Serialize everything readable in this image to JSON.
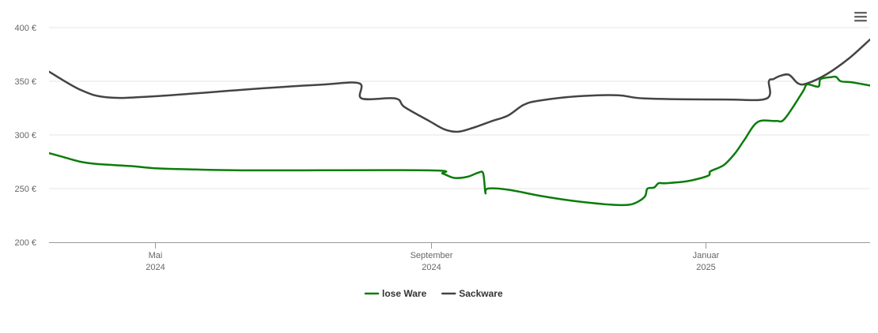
{
  "chart_data": {
    "type": "line",
    "y_axis": {
      "ticks": [
        "200 €",
        "250 €",
        "300 €",
        "350 €",
        "400 €"
      ],
      "values": [
        200,
        250,
        300,
        350,
        400
      ],
      "ylim": [
        200,
        400
      ]
    },
    "x_axis": {
      "ticks": [
        {
          "date": "2024-05-01",
          "month": "Mai",
          "year": "2024"
        },
        {
          "date": "2024-09-01",
          "month": "September",
          "year": "2024"
        },
        {
          "date": "2025-01-01",
          "month": "Januar",
          "year": "2025"
        }
      ],
      "xlim": [
        "2024-03-15",
        "2025-03-15"
      ]
    },
    "grid": "horizontal",
    "legend_position": "bottom-center",
    "series": [
      {
        "name": "lose Ware",
        "color": "#0a7d0a",
        "points": [
          [
            "2024-03-15",
            283
          ],
          [
            "2024-03-22",
            279
          ],
          [
            "2024-03-29",
            275
          ],
          [
            "2024-04-05",
            273
          ],
          [
            "2024-04-20",
            271
          ],
          [
            "2024-05-01",
            269
          ],
          [
            "2024-05-15",
            268
          ],
          [
            "2024-06-15",
            267
          ],
          [
            "2024-08-31",
            267
          ],
          [
            "2024-09-06",
            264
          ],
          [
            "2024-09-11",
            260
          ],
          [
            "2024-09-17",
            261
          ],
          [
            "2024-09-22",
            265
          ],
          [
            "2024-09-24",
            264
          ],
          [
            "2024-09-25",
            246
          ],
          [
            "2024-09-26",
            250
          ],
          [
            "2024-10-05",
            249
          ],
          [
            "2024-10-20",
            243
          ],
          [
            "2024-11-05",
            238
          ],
          [
            "2024-11-20",
            235
          ],
          [
            "2024-11-28",
            235
          ],
          [
            "2024-12-02",
            238
          ],
          [
            "2024-12-05",
            243
          ],
          [
            "2024-12-06",
            250
          ],
          [
            "2024-12-09",
            251
          ],
          [
            "2024-12-11",
            255
          ],
          [
            "2024-12-14",
            255
          ],
          [
            "2024-12-24",
            257
          ],
          [
            "2025-01-02",
            262
          ],
          [
            "2025-01-03",
            266
          ],
          [
            "2025-01-09",
            272
          ],
          [
            "2025-01-14",
            283
          ],
          [
            "2025-01-18",
            295
          ],
          [
            "2025-01-24",
            312
          ],
          [
            "2025-02-01",
            313
          ],
          [
            "2025-02-05",
            315
          ],
          [
            "2025-02-13",
            340
          ],
          [
            "2025-02-15",
            347
          ],
          [
            "2025-02-20",
            345
          ],
          [
            "2025-02-21",
            352
          ],
          [
            "2025-02-26",
            354
          ],
          [
            "2025-02-28",
            354
          ],
          [
            "2025-03-02",
            350
          ],
          [
            "2025-03-07",
            349
          ],
          [
            "2025-03-15",
            346
          ]
        ]
      },
      {
        "name": "Sackware",
        "color": "#444444",
        "points": [
          [
            "2024-03-15",
            359
          ],
          [
            "2024-03-29",
            342
          ],
          [
            "2024-04-10",
            335
          ],
          [
            "2024-05-01",
            336
          ],
          [
            "2024-06-15",
            343
          ],
          [
            "2024-07-15",
            347
          ],
          [
            "2024-07-31",
            348
          ],
          [
            "2024-08-01",
            334
          ],
          [
            "2024-08-16",
            334
          ],
          [
            "2024-08-20",
            326
          ],
          [
            "2024-08-31",
            313
          ],
          [
            "2024-09-07",
            305
          ],
          [
            "2024-09-13",
            303
          ],
          [
            "2024-09-20",
            307
          ],
          [
            "2024-09-28",
            313
          ],
          [
            "2024-10-05",
            318
          ],
          [
            "2024-10-12",
            328
          ],
          [
            "2024-10-19",
            332
          ],
          [
            "2024-11-05",
            336
          ],
          [
            "2024-11-23",
            337
          ],
          [
            "2024-12-05",
            334
          ],
          [
            "2025-01-10",
            333
          ],
          [
            "2025-01-28",
            334
          ],
          [
            "2025-01-29",
            350
          ],
          [
            "2025-01-31",
            352
          ],
          [
            "2025-02-03",
            355
          ],
          [
            "2025-02-07",
            356
          ],
          [
            "2025-02-11",
            348
          ],
          [
            "2025-02-15",
            348
          ],
          [
            "2025-02-24",
            357
          ],
          [
            "2025-03-06",
            372
          ],
          [
            "2025-03-15",
            389
          ]
        ]
      }
    ]
  }
}
